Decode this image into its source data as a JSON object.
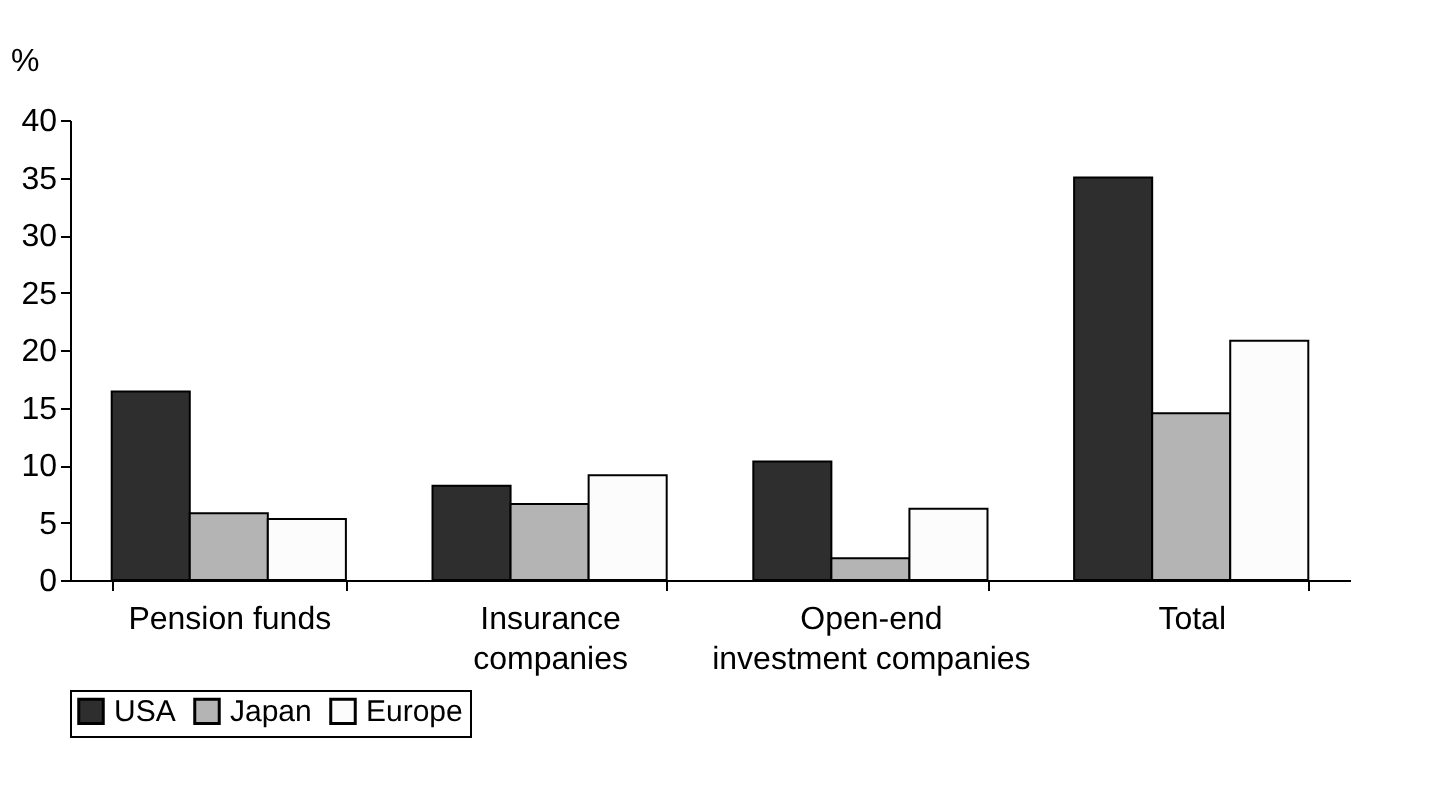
{
  "chart_data": {
    "type": "bar",
    "ylabel": "%",
    "categories": [
      "Pension funds",
      "Insurance\ncompanies",
      "Open-end\ninvestment companies",
      "Total"
    ],
    "series": [
      {
        "name": "USA",
        "color": "#2e2e2e",
        "values": [
          16.4,
          8.2,
          10.3,
          35.0
        ]
      },
      {
        "name": "Japan",
        "color": "#b4b4b4",
        "values": [
          5.8,
          6.6,
          1.9,
          14.5
        ]
      },
      {
        "name": "Europe",
        "color": "#fcfcfc",
        "values": [
          5.3,
          9.1,
          6.2,
          20.8
        ]
      }
    ],
    "ylim": [
      0,
      40
    ],
    "yticks": [
      0,
      5,
      10,
      15,
      20,
      25,
      30,
      35,
      40
    ],
    "grid": false,
    "legend": "bottom"
  }
}
